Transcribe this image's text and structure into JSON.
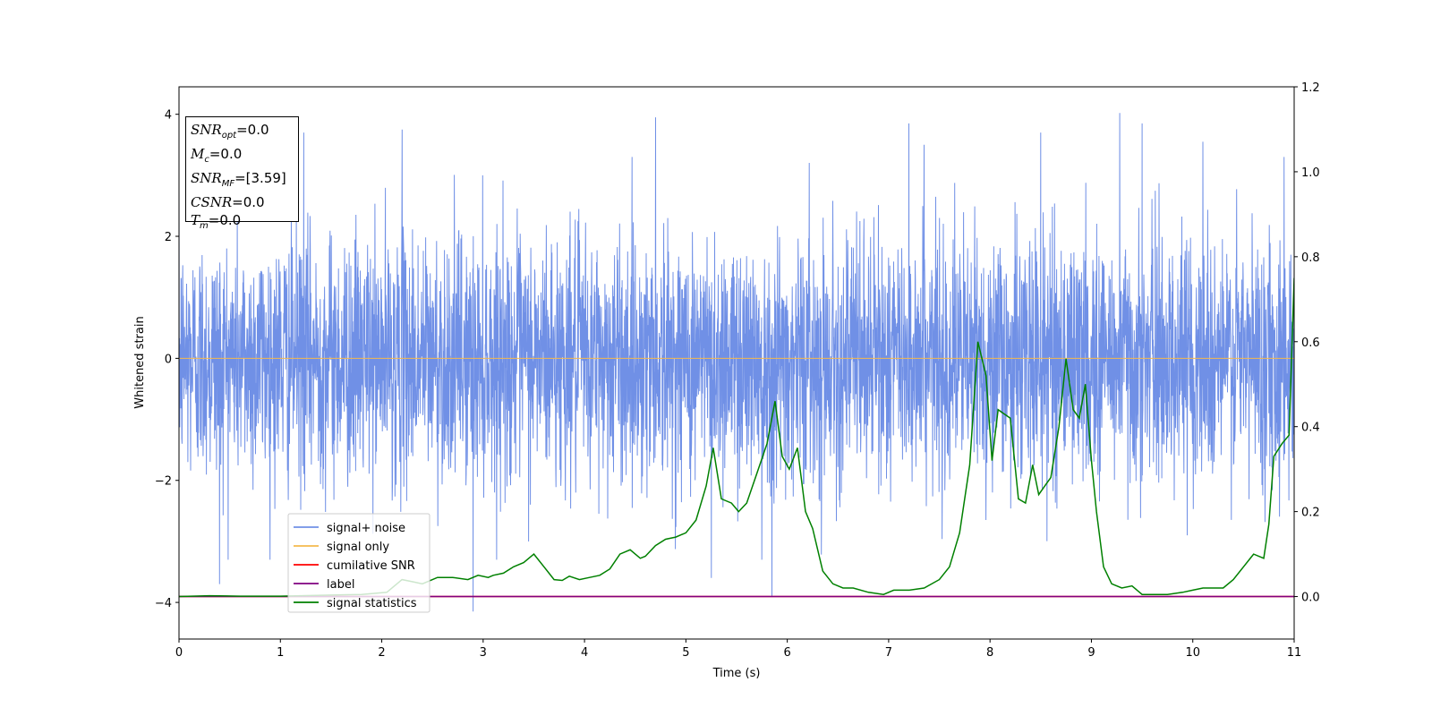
{
  "colors": {
    "noise": "#7090e6",
    "signal": "#f5b94d",
    "csnr": "#ff0000",
    "label": "#800080",
    "stat": "#008000"
  },
  "info_box": {
    "snr_opt": {
      "sym": "SNR",
      "sub": "opt",
      "value": "=0.0"
    },
    "mc": {
      "sym": "M",
      "sub": "c",
      "value": "=0.0"
    },
    "snr_mf": {
      "sym": "SNR",
      "sub": "MF",
      "value": "=[3.59]"
    },
    "csnr": {
      "sym": "CSNR",
      "value": "=0.0"
    },
    "tm": {
      "sym": "T",
      "sub": "m",
      "value": "=0.0"
    }
  },
  "chart_data": {
    "type": "line",
    "title": "",
    "xlabel": "Time (s)",
    "ylabel": "Whitened strain",
    "xlim": [
      0,
      11
    ],
    "ylim": [
      -4.6,
      4.45
    ],
    "y2lim": [
      -0.1,
      1.2
    ],
    "xticks": [
      "0",
      "1",
      "2",
      "3",
      "4",
      "5",
      "6",
      "7",
      "8",
      "9",
      "10",
      "11"
    ],
    "yticks": [
      "−4",
      "−2",
      "0",
      "2",
      "4"
    ],
    "y2ticks": [
      "0.0",
      "0.2",
      "0.4",
      "0.6",
      "0.8",
      "1.0",
      "1.2"
    ],
    "legend_position": "lower-left",
    "legend": [
      "signal+ noise",
      "signal only",
      "cumilative SNR",
      "label",
      "signal statistics"
    ],
    "series": [
      {
        "name": "signal+ noise",
        "axis": "left",
        "description_noise_std": 1.0,
        "peaks": [
          [
            0.4,
            -3.7
          ],
          [
            1.23,
            3.7
          ],
          [
            2.9,
            -4.15
          ],
          [
            4.7,
            3.95
          ],
          [
            5.25,
            -3.6
          ],
          [
            5.85,
            -3.9
          ],
          [
            7.2,
            3.85
          ],
          [
            7.35,
            3.5
          ],
          [
            8.5,
            3.7
          ],
          [
            9.28,
            4.02
          ],
          [
            9.5,
            3.85
          ],
          [
            10.1,
            3.55
          ],
          [
            10.9,
            3.3
          ],
          [
            2.2,
            3.75
          ],
          [
            5.75,
            -3.3
          ]
        ]
      },
      {
        "name": "signal only",
        "axis": "left",
        "x": [
          0,
          11
        ],
        "y": [
          0,
          0
        ]
      },
      {
        "name": "cumilative SNR",
        "axis": "right",
        "x": [
          0,
          11
        ],
        "y": [
          0,
          0
        ]
      },
      {
        "name": "label",
        "axis": "right",
        "x": [
          0,
          11
        ],
        "y": [
          0,
          0
        ]
      },
      {
        "name": "signal statistics",
        "axis": "right",
        "x": [
          0,
          0.3,
          0.6,
          1.0,
          1.4,
          1.8,
          2.05,
          2.2,
          2.3,
          2.4,
          2.55,
          2.7,
          2.85,
          2.95,
          3.05,
          3.1,
          3.2,
          3.3,
          3.4,
          3.5,
          3.6,
          3.7,
          3.78,
          3.85,
          3.95,
          4.05,
          4.15,
          4.25,
          4.35,
          4.45,
          4.55,
          4.6,
          4.7,
          4.8,
          4.9,
          5.0,
          5.1,
          5.2,
          5.27,
          5.35,
          5.45,
          5.52,
          5.6,
          5.7,
          5.8,
          5.88,
          5.95,
          6.02,
          6.1,
          6.18,
          6.25,
          6.35,
          6.45,
          6.55,
          6.65,
          6.8,
          6.95,
          7.05,
          7.2,
          7.35,
          7.5,
          7.6,
          7.7,
          7.8,
          7.88,
          7.96,
          8.02,
          8.08,
          8.14,
          8.2,
          8.28,
          8.35,
          8.42,
          8.48,
          8.54,
          8.6,
          8.68,
          8.75,
          8.82,
          8.88,
          8.94,
          9.0,
          9.05,
          9.12,
          9.2,
          9.3,
          9.4,
          9.5,
          9.6,
          9.75,
          9.9,
          10.0,
          10.1,
          10.2,
          10.3,
          10.4,
          10.5,
          10.6,
          10.7,
          10.75,
          10.8,
          10.88,
          10.95,
          11.0
        ],
        "y": [
          0.0,
          0.002,
          0.001,
          0.001,
          0.003,
          0.005,
          0.01,
          0.04,
          0.035,
          0.03,
          0.045,
          0.045,
          0.04,
          0.05,
          0.045,
          0.05,
          0.055,
          0.07,
          0.08,
          0.1,
          0.07,
          0.04,
          0.038,
          0.048,
          0.04,
          0.045,
          0.05,
          0.065,
          0.1,
          0.11,
          0.09,
          0.095,
          0.12,
          0.135,
          0.14,
          0.15,
          0.18,
          0.26,
          0.35,
          0.23,
          0.22,
          0.2,
          0.22,
          0.29,
          0.36,
          0.46,
          0.33,
          0.3,
          0.35,
          0.2,
          0.16,
          0.06,
          0.03,
          0.02,
          0.02,
          0.01,
          0.005,
          0.015,
          0.015,
          0.02,
          0.04,
          0.07,
          0.15,
          0.31,
          0.6,
          0.52,
          0.32,
          0.44,
          0.43,
          0.42,
          0.23,
          0.22,
          0.31,
          0.24,
          0.26,
          0.28,
          0.4,
          0.56,
          0.44,
          0.42,
          0.5,
          0.32,
          0.2,
          0.07,
          0.03,
          0.02,
          0.025,
          0.005,
          0.005,
          0.005,
          0.01,
          0.015,
          0.02,
          0.02,
          0.02,
          0.04,
          0.07,
          0.1,
          0.09,
          0.17,
          0.33,
          0.36,
          0.38,
          0.75
        ]
      }
    ]
  }
}
